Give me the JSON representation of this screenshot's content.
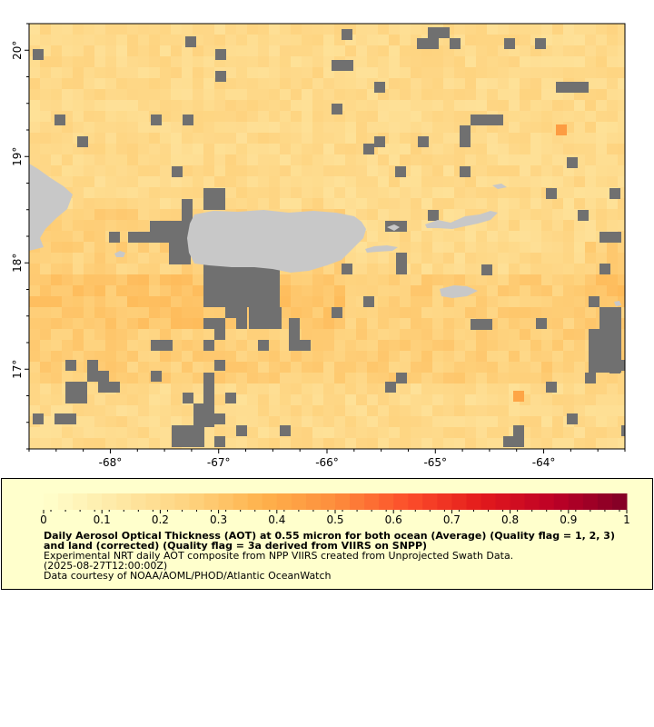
{
  "map": {
    "lon_range": [
      -68.75,
      -63.25
    ],
    "lat_range": [
      16.25,
      20.25
    ],
    "x_ticks": [
      {
        "value": -68,
        "label": "-68°"
      },
      {
        "value": -67,
        "label": "-67°"
      },
      {
        "value": -66,
        "label": "-66°"
      },
      {
        "value": -65,
        "label": "-65°"
      },
      {
        "value": -64,
        "label": "-64°"
      }
    ],
    "y_ticks": [
      {
        "value": 17,
        "label": "17°"
      },
      {
        "value": 18,
        "label": "18°"
      },
      {
        "value": 19,
        "label": "19°"
      },
      {
        "value": 20,
        "label": "20°"
      }
    ],
    "colors": {
      "nodata": "#707070",
      "land": "#c8c8c8",
      "background_aot": "#fde49a",
      "frame": "#000000"
    }
  },
  "legend": {
    "range": [
      0,
      1
    ],
    "tick_labels": [
      "0",
      "0.1",
      "0.2",
      "0.3",
      "0.4",
      "0.5",
      "0.6",
      "0.7",
      "0.8",
      "0.9",
      "1"
    ],
    "color_stops": [
      "#ffffcc",
      "#fee9a6",
      "#fed37f",
      "#feb24c",
      "#fd8d3c",
      "#fc4e2a",
      "#e31a1c",
      "#bd0026",
      "#800026"
    ],
    "title": "Daily Aerosol Optical Thickness (AOT) at 0.55 micron for both ocean (Average) (Quality flag = 1, 2, 3) and land (corrected) (Quality flag = 3a derived from VIIRS on SNPP)",
    "line1": "Experimental NRT daily AOT composite from NPP VIIRS created from Unprojected Swath Data.",
    "line2": "(2025-08-27T12:00:00Z)",
    "line3": "Data courtesy of NOAA/AOML/PHOD/Atlantic OceanWatch"
  }
}
